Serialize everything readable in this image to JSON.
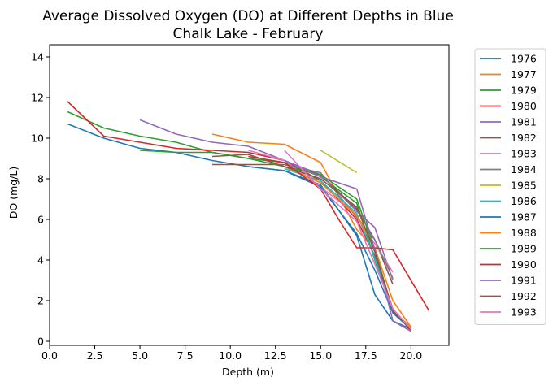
{
  "chart_data": {
    "type": "line",
    "title": "Average Dissolved Oxygen (DO) at Different Depths in Blue Chalk Lake - February",
    "title_lines": [
      "Average Dissolved Oxygen (DO) at Different Depths in Blue",
      "Chalk Lake - February"
    ],
    "xlabel": "Depth (m)",
    "ylabel": "DO (mg/L)",
    "xlim": [
      0,
      22.1
    ],
    "ylim": [
      -0.2,
      14.6
    ],
    "xticks": [
      0,
      2.5,
      5,
      7.5,
      10,
      12.5,
      15,
      17.5,
      20
    ],
    "xtick_labels": [
      "0.0",
      "2.5",
      "5.0",
      "7.5",
      "10.0",
      "12.5",
      "15.0",
      "17.5",
      "20.0"
    ],
    "yticks": [
      0,
      2,
      4,
      6,
      8,
      10,
      12,
      14
    ],
    "ytick_labels": [
      "0",
      "2",
      "4",
      "6",
      "8",
      "10",
      "12",
      "14"
    ],
    "grid": false,
    "legend_position": "outside-right",
    "series": [
      {
        "name": "1976",
        "color": "#1f77b4",
        "points": [
          [
            1,
            10.7
          ],
          [
            3,
            10.0
          ],
          [
            5,
            9.5
          ],
          [
            7,
            9.3
          ],
          [
            9,
            8.9
          ],
          [
            11,
            8.6
          ],
          [
            13,
            8.4
          ],
          [
            15,
            7.7
          ],
          [
            17,
            5.2
          ],
          [
            18,
            2.3
          ],
          [
            19,
            1.0
          ],
          [
            20,
            0.6
          ]
        ]
      },
      {
        "name": "1977",
        "color": "#ff7f0e",
        "points": [
          [
            9,
            10.2
          ],
          [
            11,
            9.8
          ],
          [
            13,
            9.7
          ],
          [
            15,
            8.8
          ],
          [
            17,
            5.5
          ],
          [
            18,
            4.5
          ],
          [
            19,
            1.5
          ],
          [
            20,
            0.7
          ]
        ]
      },
      {
        "name": "1979",
        "color": "#2ca02c",
        "points": [
          [
            1,
            11.3
          ],
          [
            3,
            10.5
          ],
          [
            5,
            10.1
          ],
          [
            7,
            9.8
          ],
          [
            9,
            9.3
          ],
          [
            11,
            9.0
          ],
          [
            13,
            8.8
          ],
          [
            15,
            8.1
          ],
          [
            17,
            6.8
          ],
          [
            18,
            4.0
          ],
          [
            19,
            1.5
          ],
          [
            20,
            0.6
          ]
        ]
      },
      {
        "name": "1980",
        "color": "#d62728",
        "points": [
          [
            1,
            11.8
          ],
          [
            3,
            10.1
          ],
          [
            5,
            9.8
          ],
          [
            7,
            9.5
          ],
          [
            9,
            9.4
          ],
          [
            11,
            9.3
          ],
          [
            13,
            8.9
          ],
          [
            15,
            7.9
          ],
          [
            17,
            6.0
          ],
          [
            18,
            4.2
          ],
          [
            19,
            1.6
          ],
          [
            20,
            0.5
          ]
        ]
      },
      {
        "name": "1981",
        "color": "#9467bd",
        "points": [
          [
            5,
            10.9
          ],
          [
            7,
            10.2
          ],
          [
            9,
            9.8
          ],
          [
            11,
            9.6
          ],
          [
            13,
            8.9
          ],
          [
            15,
            8.2
          ],
          [
            17,
            6.4
          ],
          [
            18,
            5.6
          ],
          [
            19,
            3.0
          ]
        ]
      },
      {
        "name": "1982",
        "color": "#8c564b",
        "points": [
          [
            9,
            8.7
          ],
          [
            11,
            8.7
          ],
          [
            13,
            8.7
          ],
          [
            15,
            8.2
          ],
          [
            17,
            6.5
          ],
          [
            18,
            5.0
          ],
          [
            19,
            2.8
          ]
        ]
      },
      {
        "name": "1983",
        "color": "#e377c2",
        "points": [
          [
            11,
            9.4
          ],
          [
            13,
            8.9
          ],
          [
            15,
            7.6
          ],
          [
            17,
            6.2
          ],
          [
            18,
            4.8
          ],
          [
            19,
            3.4
          ]
        ]
      },
      {
        "name": "1984",
        "color": "#7f7f7f",
        "points": [
          [
            13,
            8.7
          ],
          [
            15,
            8.3
          ],
          [
            17,
            6.1
          ],
          [
            18,
            5.0
          ],
          [
            19,
            3.1
          ]
        ]
      },
      {
        "name": "1985",
        "color": "#bcbd22",
        "points": [
          [
            15,
            9.4
          ],
          [
            17,
            8.3
          ]
        ]
      },
      {
        "name": "1986",
        "color": "#17becf",
        "points": [
          [
            13,
            8.5
          ],
          [
            15,
            7.9
          ],
          [
            17,
            6.3
          ],
          [
            18,
            4.1
          ],
          [
            19,
            1.4
          ],
          [
            20,
            0.6
          ]
        ]
      },
      {
        "name": "1987",
        "color": "#1f77b4",
        "points": [
          [
            11,
            8.6
          ],
          [
            13,
            8.4
          ],
          [
            15,
            7.6
          ],
          [
            17,
            5.3
          ],
          [
            18,
            3.5
          ],
          [
            19,
            1.4
          ],
          [
            20,
            0.6
          ]
        ]
      },
      {
        "name": "1988",
        "color": "#ff7f0e",
        "points": [
          [
            13,
            8.6
          ],
          [
            15,
            7.8
          ],
          [
            17,
            6.2
          ],
          [
            18,
            4.6
          ],
          [
            19,
            2.0
          ],
          [
            20,
            0.7
          ]
        ]
      },
      {
        "name": "1989",
        "color": "#2ca02c",
        "points": [
          [
            5,
            9.4
          ],
          [
            7,
            9.3
          ],
          [
            9,
            9.3
          ],
          [
            11,
            9.0
          ],
          [
            13,
            8.6
          ],
          [
            15,
            8.2
          ],
          [
            17,
            7.0
          ],
          [
            18,
            4.5
          ],
          [
            19,
            1.5
          ],
          [
            20,
            0.6
          ]
        ]
      },
      {
        "name": "1990",
        "color": "#d62728",
        "points": [
          [
            11,
            9.1
          ],
          [
            13,
            8.8
          ],
          [
            15,
            7.5
          ],
          [
            16,
            6.0
          ],
          [
            17,
            4.6
          ],
          [
            18,
            4.6
          ],
          [
            19,
            4.5
          ],
          [
            21,
            1.5
          ]
        ]
      },
      {
        "name": "1991",
        "color": "#9467bd",
        "points": [
          [
            13,
            8.9
          ],
          [
            15,
            8.1
          ],
          [
            17,
            7.5
          ],
          [
            18,
            4.5
          ],
          [
            19,
            1.0
          ],
          [
            20,
            0.5
          ]
        ]
      },
      {
        "name": "1992",
        "color": "#8c564b",
        "points": [
          [
            9,
            9.1
          ],
          [
            11,
            9.2
          ],
          [
            13,
            8.6
          ],
          [
            15,
            8.0
          ],
          [
            17,
            6.6
          ],
          [
            18,
            4.4
          ],
          [
            19,
            1.5
          ],
          [
            20,
            0.6
          ]
        ]
      },
      {
        "name": "1993",
        "color": "#e377c2",
        "points": [
          [
            13,
            9.4
          ],
          [
            15,
            7.5
          ],
          [
            17,
            5.9
          ],
          [
            18,
            3.8
          ],
          [
            19,
            1.6
          ],
          [
            20,
            0.6
          ]
        ]
      }
    ]
  }
}
